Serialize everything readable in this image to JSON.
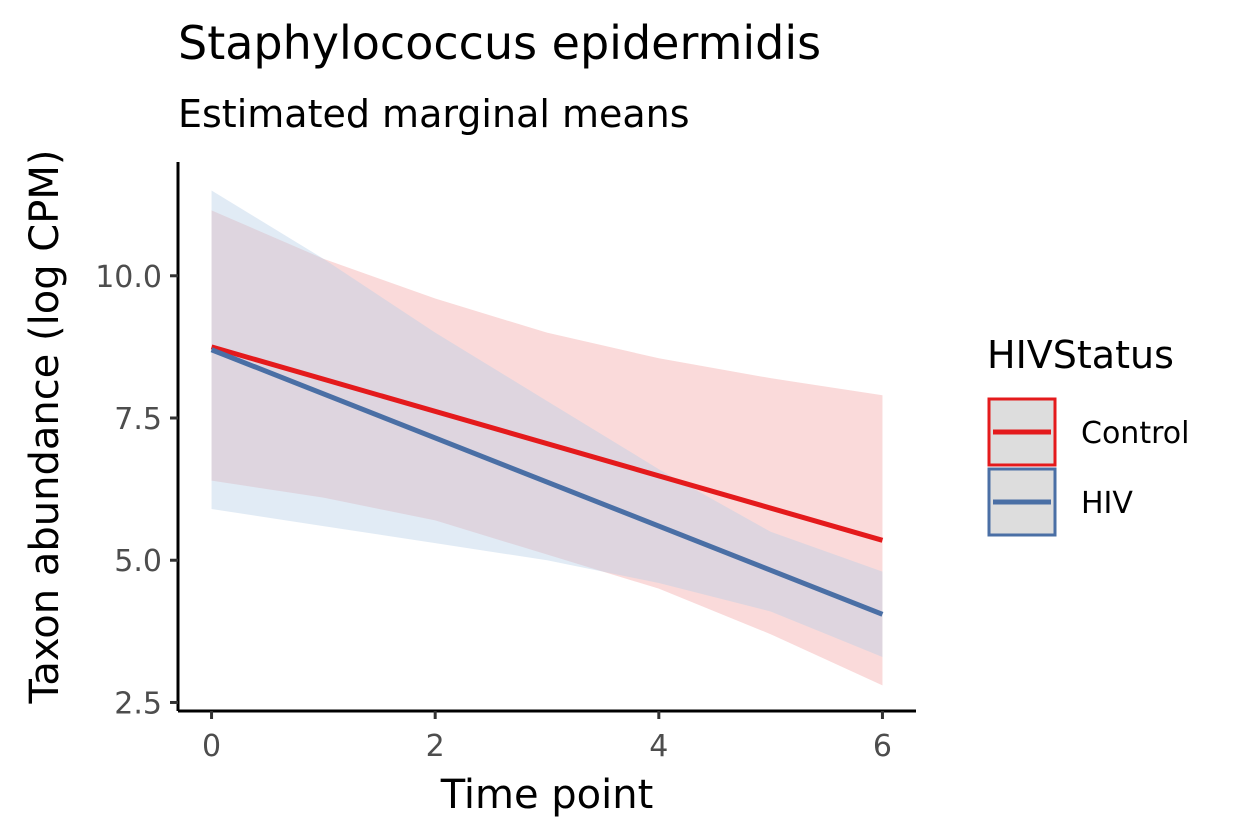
{
  "chart_data": {
    "type": "line",
    "title": "Staphylococcus epidermidis",
    "subtitle": "Estimated marginal means",
    "xlabel": "Time point",
    "ylabel": "Taxon abundance (log CPM)",
    "xlim": [
      -0.3,
      6.3
    ],
    "ylim": [
      2.35,
      12.0
    ],
    "xticks": [
      0,
      2,
      4,
      6
    ],
    "xtick_labels": [
      "0",
      "2",
      "4",
      "6"
    ],
    "yticks": [
      2.5,
      5.0,
      7.5,
      10.0
    ],
    "ytick_labels": [
      "2.5",
      "5.0",
      "7.5",
      "10.0"
    ],
    "grid": false,
    "legend": {
      "title": "HIVStatus",
      "position": "right"
    },
    "series": [
      {
        "name": "Control",
        "color": "#e41a1c",
        "band_color": "#f4a6a8",
        "x": [
          0,
          6
        ],
        "y": [
          8.75,
          5.35
        ],
        "ci_x": [
          0,
          1,
          2,
          3,
          4,
          5,
          6
        ],
        "ci_upper": [
          11.15,
          10.3,
          9.6,
          9.0,
          8.55,
          8.2,
          7.9
        ],
        "ci_lower": [
          6.4,
          6.1,
          5.7,
          5.1,
          4.5,
          3.7,
          2.8
        ]
      },
      {
        "name": "HIV",
        "color": "#4a6fa5",
        "band_color": "#b8cfe6",
        "x": [
          0,
          6
        ],
        "y": [
          8.7,
          4.05
        ],
        "ci_x": [
          0,
          1,
          2,
          3,
          4,
          5,
          6
        ],
        "ci_upper": [
          11.5,
          10.3,
          9.0,
          7.8,
          6.6,
          5.5,
          4.8
        ],
        "ci_lower": [
          5.9,
          5.6,
          5.3,
          5.0,
          4.6,
          4.1,
          3.3
        ]
      }
    ]
  }
}
